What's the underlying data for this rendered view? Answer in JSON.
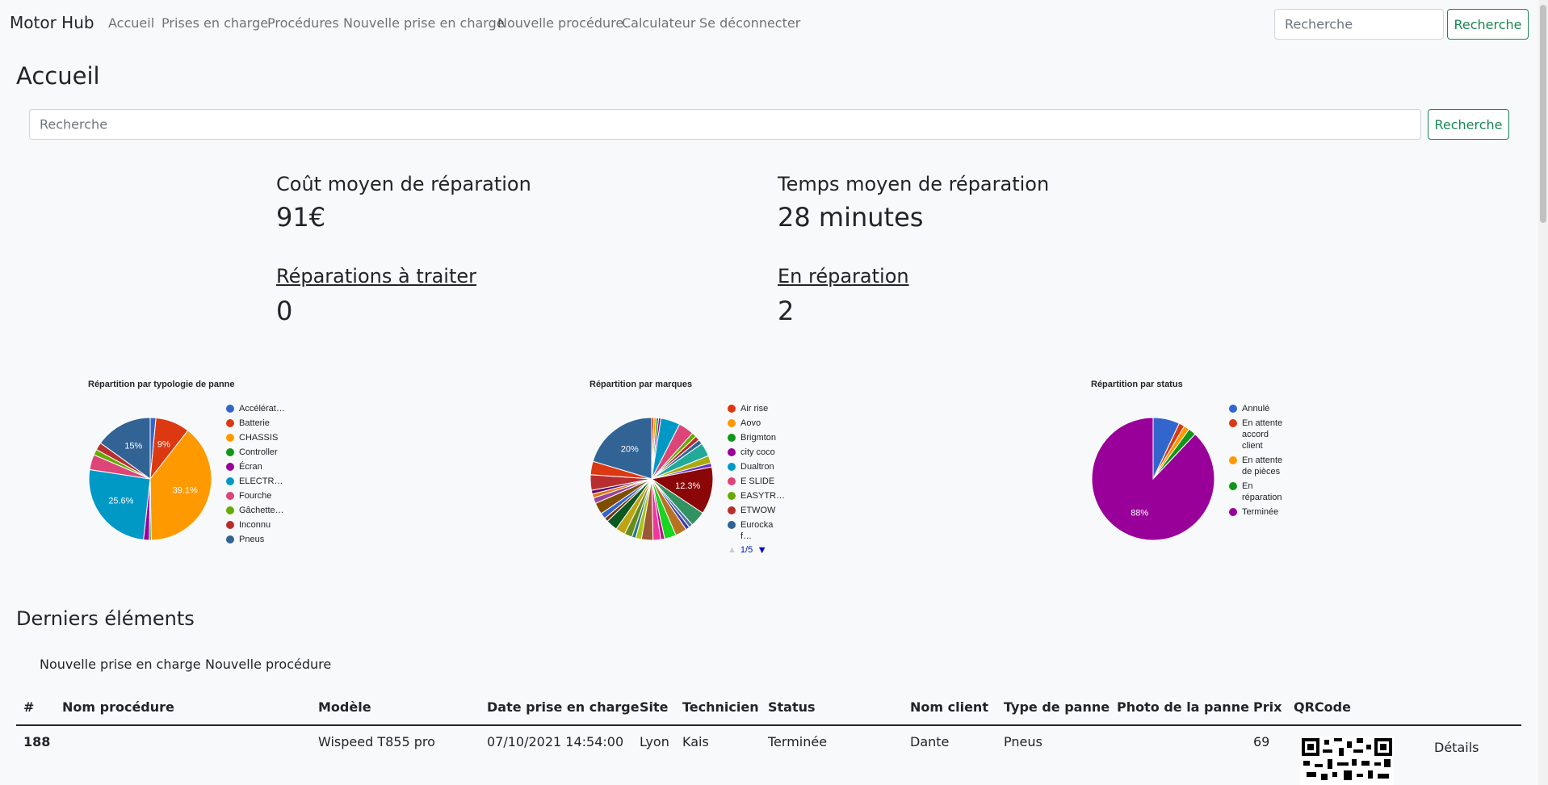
{
  "navbar": {
    "brand": "Motor Hub",
    "links": [
      "Accueil",
      "Prises en charge",
      "Procédures",
      "Nouvelle prise en charge",
      "Nouvelle procédure",
      "Calculateur",
      "Se déconnecter"
    ],
    "search_placeholder": "Recherche",
    "search_button": "Recherche"
  },
  "page_title": "Accueil",
  "search": {
    "placeholder": "Recherche",
    "button": "Recherche"
  },
  "stats": [
    {
      "label": "Coût moyen de réparation",
      "value": "91€"
    },
    {
      "label": "Temps moyen de réparation",
      "value": "28 minutes"
    },
    {
      "label": "Réparations à traiter",
      "value": "0"
    },
    {
      "label": "En réparation",
      "value": "2"
    }
  ],
  "chart_data": [
    {
      "type": "pie",
      "title": "Répartition par typologie de panne",
      "categories": [
        "Accélérat…",
        "Batterie",
        "CHASSIS",
        "Controller",
        "Écran",
        "ELECTR…",
        "Fourche",
        "Gâchette…",
        "Inconnu",
        "Pneus"
      ],
      "values": [
        1.5,
        9,
        39.1,
        0.5,
        1.5,
        25.6,
        4,
        1.5,
        2,
        15
      ],
      "value_labels": [
        null,
        "9%",
        "39.1%",
        null,
        null,
        "25.6%",
        null,
        null,
        null,
        "15%"
      ],
      "colors": [
        "#3366cc",
        "#dc3912",
        "#ff9900",
        "#109618",
        "#990099",
        "#0099c6",
        "#dd4477",
        "#66aa00",
        "#b82e2e",
        "#316395"
      ]
    },
    {
      "type": "pie",
      "title": "Répartition par marques",
      "categories": [
        "Air rise",
        "Aovo",
        "Brigmton",
        "city coco",
        "Dualtron",
        "E SLIDE",
        "EASYTR…",
        "ETWOW",
        "Eurocka f…",
        null,
        null,
        null,
        null,
        null,
        null,
        null,
        null,
        null,
        null,
        null,
        null,
        null,
        null,
        null,
        null,
        null,
        null,
        null,
        null,
        null,
        null,
        null,
        null,
        null,
        null
      ],
      "values": [
        0.6,
        0.6,
        0.6,
        0.6,
        5,
        4,
        1.2,
        1.2,
        1.2,
        3.5,
        2,
        1,
        12.3,
        4,
        1,
        1,
        3,
        3,
        1,
        2,
        3,
        1.5,
        1,
        2,
        2.5,
        3,
        1,
        1.5,
        3,
        1.5,
        1,
        1,
        4,
        3.5,
        20
      ],
      "value_labels": [
        null,
        null,
        null,
        null,
        null,
        null,
        null,
        null,
        null,
        null,
        null,
        null,
        "12.3%",
        null,
        null,
        null,
        null,
        null,
        null,
        null,
        null,
        null,
        null,
        null,
        null,
        null,
        null,
        null,
        null,
        null,
        null,
        null,
        null,
        null,
        "20%"
      ],
      "colors": [
        "#dc3912",
        "#ff9900",
        "#109618",
        "#990099",
        "#0099c6",
        "#dd4477",
        "#66aa00",
        "#b82e2e",
        "#316395",
        "#22aa99",
        "#aaaa11",
        "#6633cc",
        "#8b0707",
        "#329262",
        "#5574a6",
        "#3b3eac",
        "#b77322",
        "#16d620",
        "#b91383",
        "#f4359e",
        "#9c5935",
        "#a9c413",
        "#2a778d",
        "#668d1c",
        "#bea413",
        "#0c5922",
        "#743411",
        "#3366cc",
        "#7f4d00",
        "#994499",
        "#e67300",
        "#651067",
        "#b82e2e",
        "#dc3912",
        "#316395"
      ],
      "legend_pager": "1/5"
    },
    {
      "type": "pie",
      "title": "Répartition par status",
      "categories": [
        "Annulé",
        "En attente accord client",
        "En attente de pièces",
        "En réparation",
        "Terminée"
      ],
      "values": [
        7,
        1.5,
        1.5,
        2,
        88
      ],
      "value_labels": [
        null,
        null,
        null,
        null,
        "88%"
      ],
      "colors": [
        "#3366cc",
        "#dc3912",
        "#ff9900",
        "#109618",
        "#990099"
      ]
    }
  ],
  "recent": {
    "title": "Derniers éléments",
    "tabs": [
      "Nouvelle prise en charge",
      "Nouvelle procédure"
    ],
    "table": {
      "headers": [
        "#",
        "Nom procédure",
        "Modèle",
        "Date prise en charge",
        "Site",
        "Technicien",
        "Status",
        "Nom client",
        "Type de panne",
        "Photo de la panne",
        "Prix",
        "QRCode"
      ],
      "rows": [
        [
          "188",
          null,
          "Wispeed T855 pro",
          "07/10/2021 14:54:00",
          "Lyon",
          "Kais",
          "Terminée",
          "Dante",
          "Pneus",
          null,
          "69",
          null
        ]
      ]
    },
    "action": "Détails"
  }
}
